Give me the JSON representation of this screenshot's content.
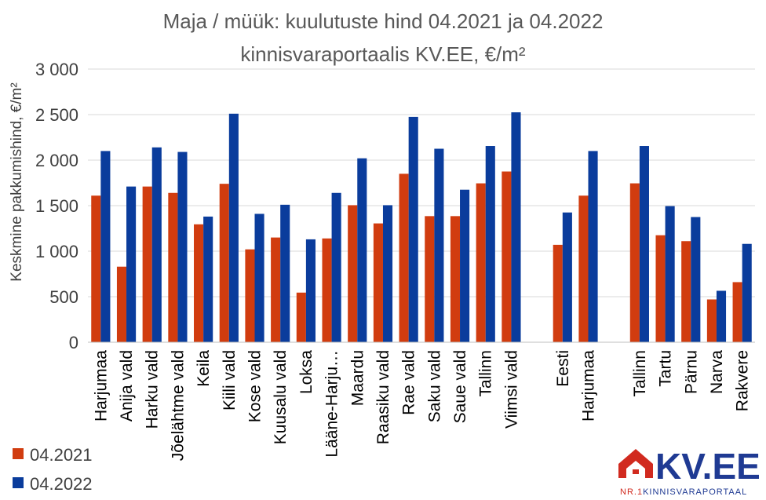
{
  "chart_data": {
    "type": "bar",
    "title_lines": [
      "Maja / müük: kuulutuste hind 04.2021 ja 04.2022",
      "kinnisvaraportaalis KV.EE, €/m²"
    ],
    "ylabel": "Keskmine pakkumishind, €/m²",
    "xlabel": "",
    "ylim": [
      0,
      3000
    ],
    "yticks": [
      0,
      500,
      1000,
      1500,
      2000,
      2500,
      3000
    ],
    "ytick_labels": [
      "0",
      "500",
      "1 000",
      "1 500",
      "2 000",
      "2 500",
      "3 000"
    ],
    "grid": true,
    "legend_position": "bottom-left",
    "categories": [
      "Harjumaa",
      "Anija vald",
      "Harku vald",
      "Jõelähtme vald",
      "Keila",
      "Kiili vald",
      "Kose vald",
      "Kuusalu vald",
      "Loksa",
      "Lääne-Harju…",
      "Maardu",
      "Raasiku vald",
      "Rae vald",
      "Saku vald",
      "Saue vald",
      "Tallinn",
      "Viimsi vald",
      "",
      "Eesti",
      "Harjumaa",
      "",
      "Tallinn",
      "Tartu",
      "Pärnu",
      "Narva",
      "Rakvere"
    ],
    "series": [
      {
        "name": "04.2021",
        "color": "#d13c0f",
        "values": [
          1610,
          830,
          1710,
          1640,
          1295,
          1740,
          1020,
          1150,
          545,
          1140,
          1505,
          1305,
          1850,
          1385,
          1385,
          1745,
          1875,
          null,
          1070,
          1610,
          null,
          1745,
          1175,
          1110,
          470,
          660
        ]
      },
      {
        "name": "04.2022",
        "color": "#0a3c9c",
        "values": [
          2100,
          1710,
          2140,
          2090,
          1380,
          2510,
          1410,
          1510,
          1130,
          1640,
          2020,
          1505,
          2475,
          2125,
          1675,
          2155,
          2525,
          null,
          1425,
          2100,
          null,
          2155,
          1495,
          1375,
          565,
          1080
        ]
      }
    ]
  },
  "logo": {
    "text": "KV.EE",
    "subtitle_prefix": "NR.1",
    "subtitle_rest": "KINNISVARAPORTAAL",
    "color": "#1f3a93",
    "house_color": "#d12a1f",
    "icon": "house-icon"
  }
}
